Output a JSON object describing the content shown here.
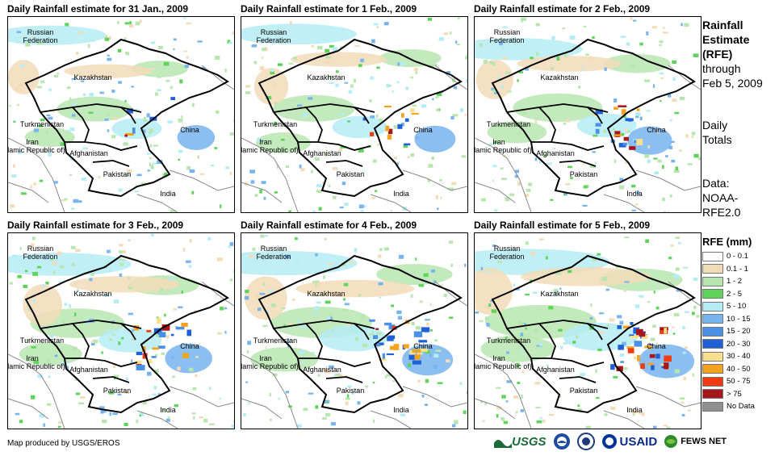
{
  "panels": [
    {
      "title": "Daily Rainfall estimate for 31 Jan., 2009",
      "intensity": 0.15
    },
    {
      "title": "Daily Rainfall estimate for 1 Feb., 2009",
      "intensity": 0.3
    },
    {
      "title": "Daily Rainfall estimate for 2 Feb., 2009",
      "intensity": 0.45
    },
    {
      "title": "Daily Rainfall estimate for 3 Feb., 2009",
      "intensity": 0.55
    },
    {
      "title": "Daily Rainfall estimate for 4 Feb., 2009",
      "intensity": 0.7
    },
    {
      "title": "Daily Rainfall estimate for 5 Feb., 2009",
      "intensity": 0.9
    }
  ],
  "map_labels": {
    "russia": "Russian\nFederation",
    "kazakhstan": "Kazakhstan",
    "turkmenistan": "Turkmenistan",
    "iran": "Iran\n(Islamic Republic of)",
    "afghanistan": "Afghanistan",
    "pakistan": "Pakistan",
    "china": "China",
    "india": "India"
  },
  "side": {
    "title1": "Rainfall",
    "title2": "Estimate",
    "title3": "(RFE)",
    "through": "through",
    "date": "Feb 5, 2009",
    "daily": "Daily",
    "totals": "Totals",
    "data_label": "Data:",
    "data_src1": "NOAA-",
    "data_src2": "RFE2.0"
  },
  "legend": {
    "title": "RFE (mm)",
    "items": [
      {
        "label": "0 - 0.1",
        "color": "#ffffff"
      },
      {
        "label": "0.1 - 1",
        "color": "#f2dcb8"
      },
      {
        "label": "1 - 2",
        "color": "#b9e6b0"
      },
      {
        "label": "2 - 5",
        "color": "#5fd35a"
      },
      {
        "label": "5 - 10",
        "color": "#b5ecf5"
      },
      {
        "label": "10 - 15",
        "color": "#78b4ee"
      },
      {
        "label": "15 - 20",
        "color": "#4a90e6"
      },
      {
        "label": "20 - 30",
        "color": "#1f5fd8"
      },
      {
        "label": "30 - 40",
        "color": "#fae08c"
      },
      {
        "label": "40 - 50",
        "color": "#f5a21e"
      },
      {
        "label": "50 - 75",
        "color": "#ee3b12"
      },
      {
        "label": "> 75",
        "color": "#a8161b"
      },
      {
        "label": "No Data",
        "color": "#909090"
      }
    ]
  },
  "credit": "Map produced by USGS/EROS",
  "logos": {
    "usgs": "USGS",
    "usaid": "USAID",
    "fews": "FEWS NET"
  },
  "colors": {
    "border": "#000000",
    "gray_border": "#888888"
  }
}
